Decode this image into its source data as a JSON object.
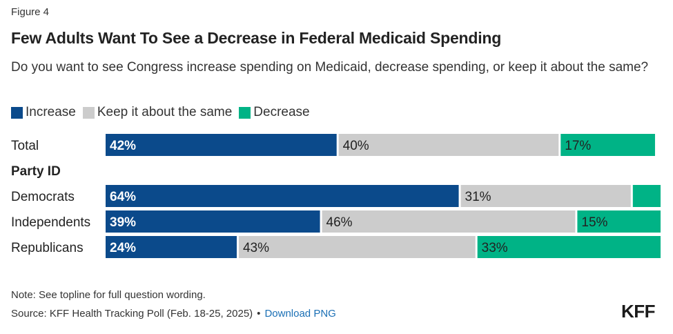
{
  "figure_label": "Figure 4",
  "footer": {
    "note": "Note: See topline for full question wording.",
    "source": "Source: KFF Health Tracking Poll (Feb. 18-25, 2025)",
    "separator": "•",
    "download_link": "Download PNG",
    "logo": "KFF"
  },
  "colors": {
    "increase": "#0b4a8b",
    "same": "#cccccc",
    "decrease": "#00b386"
  },
  "chart_data": {
    "type": "bar",
    "orientation": "horizontal",
    "stacked": true,
    "title": "Few Adults Want To See a Decrease in Federal Medicaid Spending",
    "subtitle": "Do you want to see Congress increase spending on Medicaid, decrease spending, or keep it about the same?",
    "legend_position": "top-left",
    "xlim": [
      0,
      100
    ],
    "grid": false,
    "rows": [
      {
        "label": "Total",
        "kind": "bar",
        "values": [
          42,
          40,
          17
        ],
        "labels": [
          "42%",
          "40%",
          "17%"
        ]
      },
      {
        "label": "Party ID",
        "kind": "heading"
      },
      {
        "label": "Democrats",
        "kind": "bar",
        "values": [
          64,
          31,
          5
        ],
        "labels": [
          "64%",
          "31%",
          ""
        ]
      },
      {
        "label": "Independents",
        "kind": "bar",
        "values": [
          39,
          46,
          15
        ],
        "labels": [
          "39%",
          "46%",
          "15%"
        ]
      },
      {
        "label": "Republicans",
        "kind": "bar",
        "values": [
          24,
          43,
          33
        ],
        "labels": [
          "24%",
          "43%",
          "33%"
        ]
      }
    ],
    "series": [
      {
        "name": "Increase",
        "color_key": "increase"
      },
      {
        "name": "Keep it about the same",
        "color_key": "same"
      },
      {
        "name": "Decrease",
        "color_key": "decrease"
      }
    ]
  }
}
